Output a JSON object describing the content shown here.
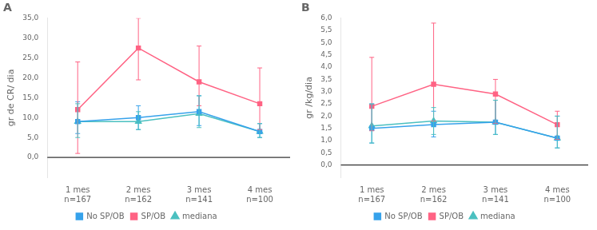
{
  "chart_data": [
    {
      "type": "line",
      "title": "A",
      "categories": [
        [
          "1 mes",
          "n=167"
        ],
        [
          "2 mes",
          "n=162"
        ],
        [
          "3 mes",
          "n=141"
        ],
        [
          "4 mes",
          "n=100"
        ]
      ],
      "ylabel": "gr de CR/ dia",
      "ylim": [
        -5.0,
        35.0
      ],
      "yticks": [
        {
          "value": 0.0,
          "label": "0,0"
        },
        {
          "value": 5.0,
          "label": "5,0"
        },
        {
          "value": 10.0,
          "label": "10,0"
        },
        {
          "value": 15.0,
          "label": "15,0"
        },
        {
          "value": 20.0,
          "label": "20,0"
        },
        {
          "value": 25.0,
          "label": "25,0"
        },
        {
          "value": 30.0,
          "label": "30,0"
        },
        {
          "value": 35.0,
          "label": "35,0"
        }
      ],
      "grid": false,
      "legend": "bottom",
      "series": [
        {
          "name": "No SP/OB",
          "marker": "square",
          "values": [
            9.0,
            10.0,
            11.5,
            6.5
          ],
          "err_lo": [
            3.0,
            3.0,
            3.5,
            1.5
          ],
          "err_hi": [
            5.0,
            3.0,
            4.0,
            2.0
          ]
        },
        {
          "name": "SP/OB",
          "marker": "square",
          "values": [
            12.0,
            27.5,
            19.0,
            13.5
          ],
          "err_lo": [
            11.0,
            8.0,
            6.0,
            6.5
          ],
          "err_hi": [
            12.0,
            7.5,
            9.0,
            9.0
          ]
        },
        {
          "name": "mediana",
          "marker": "triangle",
          "values": [
            9.0,
            9.0,
            11.0,
            6.5
          ],
          "err_lo": [
            4.0,
            2.0,
            3.5,
            1.5
          ],
          "err_hi": [
            4.5,
            2.5,
            4.5,
            2.0
          ]
        }
      ]
    },
    {
      "type": "line",
      "title": "B",
      "categories": [
        [
          "1 mes",
          "n=167"
        ],
        [
          "2 mes",
          "n=162"
        ],
        [
          "3 mes",
          "n=141"
        ],
        [
          "4 mes",
          "n=100"
        ]
      ],
      "ylabel": "gr /kg/dia",
      "ylim": [
        -0.5,
        6.0
      ],
      "yticks": [
        {
          "value": 0.0,
          "label": "0,0"
        },
        {
          "value": 0.5,
          "label": "0,5"
        },
        {
          "value": 1.0,
          "label": "1,0"
        },
        {
          "value": 1.5,
          "label": "1,5"
        },
        {
          "value": 2.0,
          "label": "2,0"
        },
        {
          "value": 2.5,
          "label": "2,5"
        },
        {
          "value": 3.0,
          "label": "3,0"
        },
        {
          "value": 3.5,
          "label": "3,5"
        },
        {
          "value": 4.0,
          "label": "4,0"
        },
        {
          "value": 4.5,
          "label": "4,5"
        },
        {
          "value": 5.0,
          "label": "5,0"
        },
        {
          "value": 5.5,
          "label": "5,5"
        },
        {
          "value": 6.0,
          "label": "6,0"
        }
      ],
      "grid": false,
      "legend": "bottom",
      "series": [
        {
          "name": "No SP/OB",
          "marker": "square",
          "values": [
            1.5,
            1.65,
            1.75,
            1.1
          ],
          "err_lo": [
            0.6,
            0.5,
            0.5,
            0.4
          ],
          "err_hi": [
            1.0,
            0.55,
            0.9,
            0.9
          ]
        },
        {
          "name": "SP/OB",
          "marker": "square",
          "values": [
            2.4,
            3.3,
            2.9,
            1.65
          ],
          "err_lo": [
            1.0,
            1.5,
            1.2,
            0.6
          ],
          "err_hi": [
            2.0,
            2.5,
            0.6,
            0.55
          ]
        },
        {
          "name": "mediana",
          "marker": "triangle",
          "values": [
            1.6,
            1.8,
            1.75,
            1.1
          ],
          "err_lo": [
            0.7,
            0.55,
            0.5,
            0.4
          ],
          "err_hi": [
            0.9,
            0.55,
            0.9,
            0.9
          ]
        }
      ]
    }
  ]
}
